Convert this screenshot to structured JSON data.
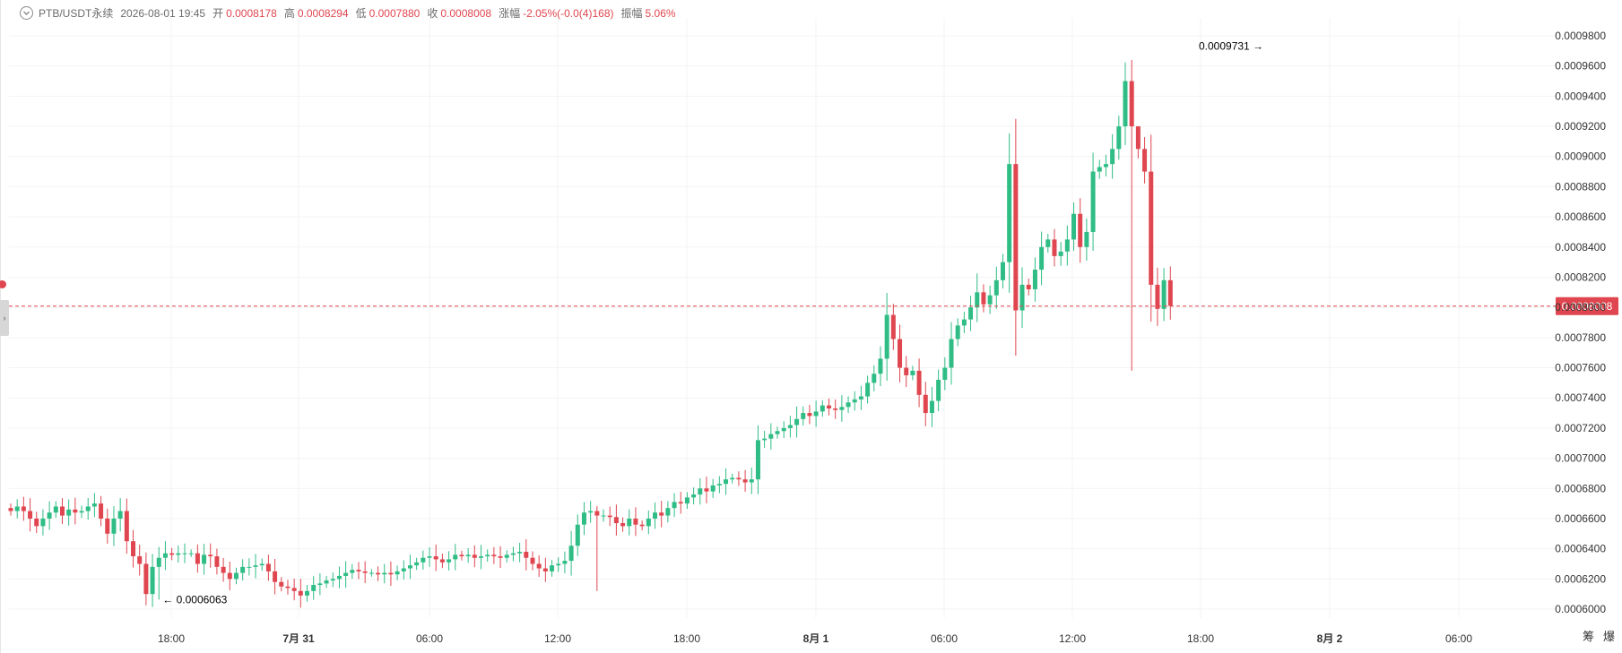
{
  "header": {
    "symbol": "PTB/USDT永续",
    "datetime": "2026-08-01 19:45",
    "open_label": "开",
    "open": "0.0008178",
    "high_label": "高",
    "high": "0.0008294",
    "low_label": "低",
    "low": "0.0007880",
    "close_label": "收",
    "close": "0.0008008",
    "change_label": "涨幅",
    "change": "-2.05%(-0.0(4)168)",
    "amplitude_label": "振幅",
    "amplitude": "5.06%"
  },
  "price_axis": {
    "ticks": [
      "0.0009800",
      "0.0009600",
      "0.0009400",
      "0.0009200",
      "0.0009000",
      "0.0008800",
      "0.0008600",
      "0.0008400",
      "0.0008200",
      "0.0008000",
      "0.0007800",
      "0.0007600",
      "0.0007400",
      "0.0007200",
      "0.0007000",
      "0.0006800",
      "0.0006600",
      "0.0006400",
      "0.0006200",
      "0.0006000"
    ],
    "current_price": "0.0008008"
  },
  "time_axis": {
    "ticks": [
      "18:00",
      "7月 31",
      "06:00",
      "12:00",
      "18:00",
      "8月 1",
      "06:00",
      "12:00",
      "18:00",
      "8月 2",
      "06:00"
    ]
  },
  "annotations": {
    "max_label": "0.0009731",
    "min_label": "0.0006063"
  },
  "footer": {
    "left": "筹",
    "right": "爆"
  },
  "colors": {
    "up": "#2fbd85",
    "down": "#e0464f",
    "grid": "#f3f3f3",
    "axis_text": "#333333"
  },
  "chart_data": {
    "type": "candlestick",
    "symbol": "PTB/USDT永续",
    "interval_minutes": 45,
    "y_range": [
      0.000595,
      0.000985
    ],
    "x_ticks": [
      "18:00",
      "7月 31",
      "06:00",
      "12:00",
      "18:00",
      "8月 1",
      "06:00",
      "12:00",
      "18:00",
      "8月 2",
      "06:00"
    ],
    "y_ticks": [
      0.00098,
      0.00096,
      0.00094,
      0.00092,
      0.0009,
      0.00088,
      0.00086,
      0.00084,
      0.00082,
      0.0008,
      0.00078,
      0.00076,
      0.00074,
      0.00072,
      0.0007,
      0.00068,
      0.00066,
      0.00064,
      0.00062,
      0.0006
    ],
    "last_price": 0.0008008,
    "max_point": 0.0009731,
    "min_point": 0.0006063,
    "close_path": [
      0.000665,
      0.000668,
      0.000665,
      0.00066,
      0.000655,
      0.00066,
      0.000664,
      0.000668,
      0.000662,
      0.000666,
      0.000664,
      0.000665,
      0.000668,
      0.00067,
      0.00066,
      0.00065,
      0.00066,
      0.000665,
      0.000645,
      0.000635,
      0.00063,
      0.00061,
      0.000628,
      0.000634,
      0.000637,
      0.000636,
      0.000637,
      0.000637,
      0.000637,
      0.00063,
      0.000636,
      0.000635,
      0.000628,
      0.000624,
      0.00062,
      0.000624,
      0.000628,
      0.000628,
      0.000629,
      0.00063,
      0.000625,
      0.000618,
      0.000615,
      0.000614,
      0.000612,
      0.000609,
      0.000612,
      0.000616,
      0.000617,
      0.000619,
      0.00062,
      0.000622,
      0.000624,
      0.000626,
      0.000625,
      0.000624,
      0.000624,
      0.000623,
      0.000624,
      0.000623,
      0.000625,
      0.000627,
      0.000629,
      0.000631,
      0.000634,
      0.000635,
      0.000633,
      0.000631,
      0.000633,
      0.000636,
      0.000635,
      0.000636,
      0.000634,
      0.000635,
      0.000636,
      0.000635,
      0.000634,
      0.000636,
      0.000637,
      0.000638,
      0.000634,
      0.00063,
      0.000627,
      0.000625,
      0.000629,
      0.00063,
      0.000632,
      0.000642,
      0.000656,
      0.000664,
      0.000665,
      0.000662,
      0.000662,
      0.000661,
      0.000657,
      0.000655,
      0.00066,
      0.000656,
      0.000655,
      0.00066,
      0.000664,
      0.000662,
      0.000667,
      0.000671,
      0.00067,
      0.000674,
      0.000676,
      0.00068,
      0.000678,
      0.000682,
      0.000683,
      0.000686,
      0.000687,
      0.000686,
      0.000684,
      0.000686,
      0.000712,
      0.000713,
      0.000716,
      0.000718,
      0.00072,
      0.000722,
      0.000726,
      0.00073,
      0.000728,
      0.000731,
      0.000735,
      0.000733,
      0.000732,
      0.000734,
      0.000737,
      0.000739,
      0.000741,
      0.00075,
      0.000756,
      0.000766,
      0.000795,
      0.000779,
      0.00076,
      0.000755,
      0.000758,
      0.000742,
      0.00073,
      0.000738,
      0.000752,
      0.00076,
      0.000779,
      0.000788,
      0.000792,
      0.0008,
      0.00081,
      0.000802,
      0.000808,
      0.000818,
      0.00083,
      0.000895,
      0.000798,
      0.000815,
      0.000812,
      0.000825,
      0.00084,
      0.000845,
      0.000834,
      0.000837,
      0.000845,
      0.000862,
      0.00084,
      0.00085,
      0.00089,
      0.000893,
      0.000895,
      0.000905,
      0.00092,
      0.00095,
      0.00092,
      0.000905,
      0.00089,
      0.000815,
      0.000799,
      0.000818,
      0.000801
    ]
  }
}
